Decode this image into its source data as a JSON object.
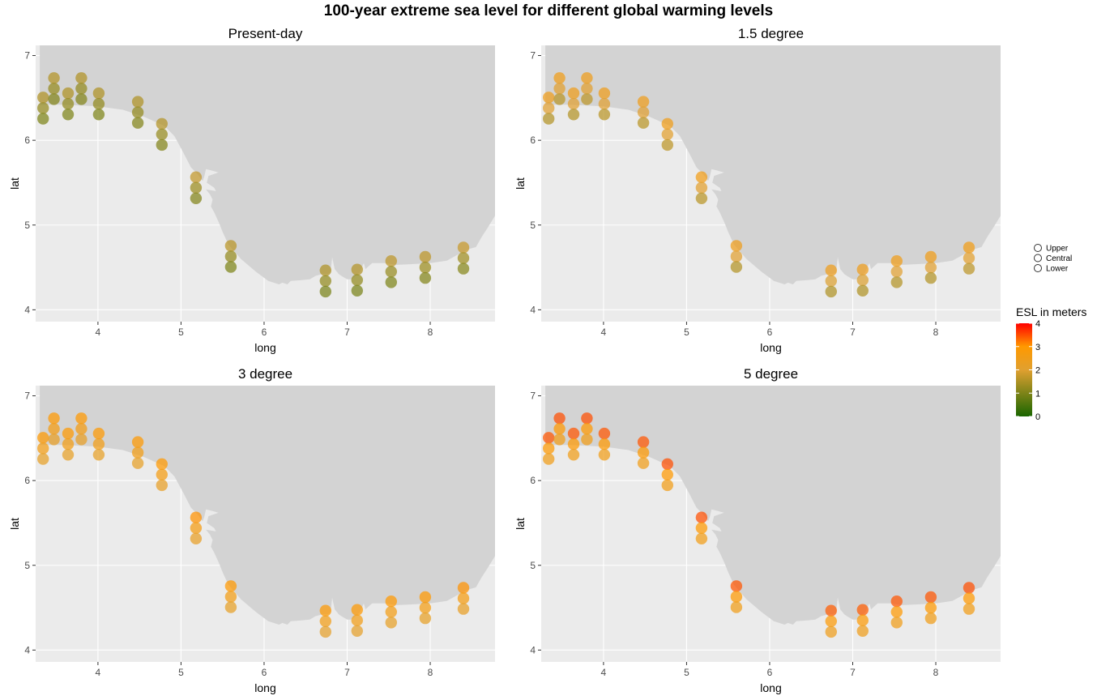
{
  "title": "100-year extreme sea level for different global warming levels",
  "chart_data": {
    "type": "scatter",
    "title": "100-year extreme sea level for different global warming levels",
    "xlabel": "long",
    "ylabel": "lat",
    "xlim": [
      3.25,
      8.78
    ],
    "ylim": [
      3.86,
      7.12
    ],
    "xticks": [
      4,
      5,
      6,
      7,
      8
    ],
    "yticks": [
      4,
      5,
      6,
      7
    ],
    "grid": true,
    "colorbar": {
      "title": "ESL in meters",
      "min": 0,
      "max": 4,
      "ticks": [
        0,
        1,
        2,
        3,
        4
      ],
      "colors": [
        "#1a6600",
        "#e0a030",
        "#ff9900",
        "#ff0000"
      ]
    },
    "size_legend": [
      "Upper",
      "Central",
      "Lower"
    ],
    "locations": [
      {
        "long": 3.34,
        "lat": 6.38
      },
      {
        "long": 3.47,
        "lat": 6.61
      },
      {
        "long": 3.64,
        "lat": 6.43
      },
      {
        "long": 3.8,
        "lat": 6.61
      },
      {
        "long": 4.01,
        "lat": 6.43
      },
      {
        "long": 4.48,
        "lat": 6.33
      },
      {
        "long": 4.77,
        "lat": 6.07
      },
      {
        "long": 5.18,
        "lat": 5.44
      },
      {
        "long": 5.6,
        "lat": 4.63
      },
      {
        "long": 6.74,
        "lat": 4.34
      },
      {
        "long": 7.12,
        "lat": 4.35
      },
      {
        "long": 7.53,
        "lat": 4.45
      },
      {
        "long": 7.94,
        "lat": 4.5
      },
      {
        "long": 8.4,
        "lat": 4.61
      }
    ],
    "panels": [
      {
        "title": "Present-day",
        "upper": [
          1.52,
          1.55,
          1.5,
          1.52,
          1.5,
          1.5,
          1.55,
          1.7,
          1.6,
          1.5,
          1.55,
          1.65,
          1.65,
          1.75
        ],
        "central": [
          1.22,
          1.25,
          1.2,
          1.22,
          1.2,
          1.22,
          1.25,
          1.3,
          1.22,
          1.2,
          1.2,
          1.25,
          1.3,
          1.35
        ],
        "lower": [
          1.0,
          1.05,
          1.0,
          1.05,
          1.0,
          1.05,
          1.05,
          1.05,
          1.0,
          0.95,
          0.95,
          1.0,
          1.05,
          1.1
        ]
      },
      {
        "title": "1.5 degree",
        "upper": [
          2.45,
          2.5,
          2.45,
          2.45,
          2.45,
          2.45,
          2.5,
          2.55,
          2.45,
          2.45,
          2.45,
          2.5,
          2.5,
          2.55
        ],
        "central": [
          2.0,
          2.05,
          2.0,
          2.05,
          2.0,
          2.0,
          2.05,
          2.05,
          2.0,
          1.95,
          1.95,
          2.0,
          2.0,
          2.05
        ],
        "lower": [
          1.55,
          1.6,
          1.55,
          1.65,
          1.6,
          1.6,
          1.65,
          1.6,
          1.55,
          1.5,
          1.5,
          1.55,
          1.55,
          1.65
        ]
      },
      {
        "title": "3 degree",
        "upper": [
          2.95,
          3.0,
          2.95,
          3.0,
          2.95,
          2.95,
          3.0,
          3.05,
          3.0,
          2.95,
          2.95,
          3.0,
          3.0,
          3.05
        ],
        "central": [
          2.6,
          2.65,
          2.6,
          2.65,
          2.6,
          2.6,
          2.65,
          2.65,
          2.6,
          2.55,
          2.55,
          2.6,
          2.6,
          2.65
        ],
        "lower": [
          2.2,
          2.25,
          2.2,
          2.25,
          2.2,
          2.2,
          2.25,
          2.25,
          2.2,
          2.15,
          2.15,
          2.2,
          2.2,
          2.25
        ]
      },
      {
        "title": "5 degree",
        "upper": [
          3.45,
          3.5,
          3.45,
          3.5,
          3.45,
          3.45,
          3.5,
          3.5,
          3.45,
          3.4,
          3.4,
          3.45,
          3.45,
          3.5
        ],
        "central": [
          2.95,
          3.0,
          2.95,
          3.0,
          2.95,
          2.95,
          3.0,
          3.0,
          2.95,
          2.9,
          2.9,
          2.95,
          2.95,
          3.0
        ],
        "lower": [
          2.5,
          2.55,
          2.5,
          2.55,
          2.5,
          2.5,
          2.55,
          2.55,
          2.5,
          2.45,
          2.45,
          2.5,
          2.5,
          2.55
        ]
      }
    ]
  }
}
